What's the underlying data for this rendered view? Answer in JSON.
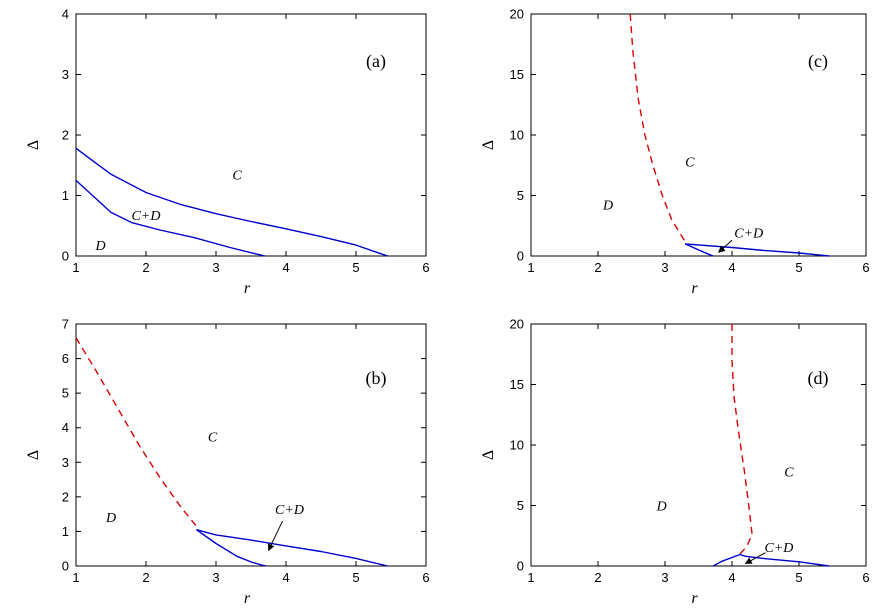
{
  "chart_data": [
    {
      "panel": "(a)",
      "type": "line",
      "xlabel": "r",
      "ylabel": "Δ",
      "xlim": [
        1,
        6
      ],
      "ylim": [
        0,
        4
      ],
      "xticks": [
        "1",
        "2",
        "3",
        "4",
        "5",
        "6"
      ],
      "yticks": [
        "0",
        "1",
        "2",
        "3",
        "4"
      ],
      "grid": false,
      "series": [
        {
          "color": "#0000cc",
          "style": "solid",
          "x": [
            1.0,
            1.5,
            2.0,
            2.5,
            3.0,
            3.5,
            4.0,
            4.5,
            5.0,
            5.45
          ],
          "y": [
            1.78,
            1.35,
            1.05,
            0.85,
            0.7,
            0.57,
            0.45,
            0.32,
            0.18,
            0.0
          ]
        },
        {
          "color": "#0000cc",
          "style": "solid",
          "x": [
            1.0,
            1.5,
            1.8,
            2.2,
            2.7,
            3.2,
            3.55,
            3.7
          ],
          "y": [
            1.25,
            0.72,
            0.55,
            0.43,
            0.3,
            0.14,
            0.04,
            0.0
          ]
        }
      ],
      "annotations": [
        {
          "text": "C",
          "x": 3.3,
          "y": 1.35
        },
        {
          "text": "C+D",
          "x": 2.0,
          "y": 0.68
        },
        {
          "text": "D",
          "x": 1.35,
          "y": 0.18
        }
      ]
    },
    {
      "panel": "(b)",
      "type": "line",
      "xlabel": "r",
      "ylabel": "Δ",
      "xlim": [
        1,
        6
      ],
      "ylim": [
        0,
        7
      ],
      "xticks": [
        "1",
        "2",
        "3",
        "4",
        "5",
        "6"
      ],
      "yticks": [
        "0",
        "1",
        "2",
        "3",
        "4",
        "5",
        "6",
        "7"
      ],
      "grid": false,
      "series": [
        {
          "color": "#dd0000",
          "style": "dashed",
          "x": [
            1.0,
            1.3,
            1.6,
            1.9,
            2.2,
            2.5,
            2.72
          ],
          "y": [
            6.6,
            5.6,
            4.55,
            3.5,
            2.55,
            1.7,
            1.15
          ]
        },
        {
          "color": "#0000cc",
          "style": "solid",
          "x": [
            2.72,
            3.0,
            3.5,
            4.0,
            4.5,
            5.0,
            5.45
          ],
          "y": [
            1.05,
            0.9,
            0.75,
            0.58,
            0.42,
            0.22,
            0.0
          ]
        },
        {
          "color": "#0000cc",
          "style": "solid",
          "x": [
            2.72,
            3.0,
            3.3,
            3.5,
            3.65,
            3.72
          ],
          "y": [
            1.05,
            0.65,
            0.28,
            0.12,
            0.03,
            0.0
          ]
        }
      ],
      "annotations": [
        {
          "text": "C",
          "x": 2.95,
          "y": 3.75
        },
        {
          "text": "C+D",
          "x": 4.05,
          "y": 1.65
        },
        {
          "text": "D",
          "x": 1.5,
          "y": 1.42
        }
      ],
      "arrows": [
        {
          "from": [
            3.95,
            1.3
          ],
          "to": [
            3.75,
            0.45
          ]
        }
      ]
    },
    {
      "panel": "(c)",
      "type": "line",
      "xlabel": "r",
      "ylabel": "Δ",
      "xlim": [
        1,
        6
      ],
      "ylim": [
        0,
        20
      ],
      "xticks": [
        "1",
        "2",
        "3",
        "4",
        "5",
        "6"
      ],
      "yticks": [
        "0",
        "5",
        "10",
        "15",
        "20"
      ],
      "grid": false,
      "series": [
        {
          "color": "#dd0000",
          "style": "dashed",
          "x": [
            2.48,
            2.52,
            2.6,
            2.7,
            2.82,
            2.96,
            3.1,
            3.3
          ],
          "y": [
            20.0,
            17.0,
            13.0,
            10.0,
            7.5,
            5.0,
            3.0,
            1.2
          ]
        },
        {
          "color": "#0000cc",
          "style": "solid",
          "x": [
            3.3,
            4.0,
            4.5,
            5.0,
            5.45
          ],
          "y": [
            1.0,
            0.7,
            0.45,
            0.25,
            0.0
          ]
        },
        {
          "color": "#0000cc",
          "style": "solid",
          "x": [
            3.3,
            3.5,
            3.65,
            3.72
          ],
          "y": [
            1.0,
            0.5,
            0.15,
            0.0
          ]
        }
      ],
      "annotations": [
        {
          "text": "C",
          "x": 3.37,
          "y": 7.8
        },
        {
          "text": "C+D",
          "x": 4.25,
          "y": 1.95
        },
        {
          "text": "D",
          "x": 2.15,
          "y": 4.25
        }
      ],
      "arrows": [
        {
          "from": [
            4.0,
            1.3
          ],
          "to": [
            3.8,
            0.3
          ]
        }
      ]
    },
    {
      "panel": "(d)",
      "type": "line",
      "xlabel": "r",
      "ylabel": "Δ",
      "xlim": [
        1,
        6
      ],
      "ylim": [
        0,
        20
      ],
      "xticks": [
        "1",
        "2",
        "3",
        "4",
        "5",
        "6"
      ],
      "yticks": [
        "0",
        "5",
        "10",
        "15",
        "20"
      ],
      "grid": false,
      "series": [
        {
          "color": "#dd0000",
          "style": "dashed",
          "x": [
            4.0,
            4.0,
            4.03,
            4.1,
            4.18,
            4.25,
            4.3,
            4.22,
            4.12
          ],
          "y": [
            20.0,
            17.0,
            14.0,
            11.0,
            8.0,
            5.0,
            2.6,
            1.6,
            1.0
          ]
        },
        {
          "color": "#0000cc",
          "style": "solid",
          "x": [
            3.72,
            3.85,
            4.0,
            4.12,
            4.2,
            4.5,
            5.0,
            5.45
          ],
          "y": [
            0.0,
            0.4,
            0.7,
            0.95,
            0.8,
            0.6,
            0.35,
            0.0
          ]
        }
      ],
      "annotations": [
        {
          "text": "C",
          "x": 4.85,
          "y": 7.8
        },
        {
          "text": "C+D",
          "x": 4.7,
          "y": 1.55
        },
        {
          "text": "D",
          "x": 2.95,
          "y": 5.0
        }
      ],
      "arrows": [
        {
          "from": [
            4.5,
            1.1
          ],
          "to": [
            4.2,
            0.2
          ]
        }
      ]
    }
  ]
}
